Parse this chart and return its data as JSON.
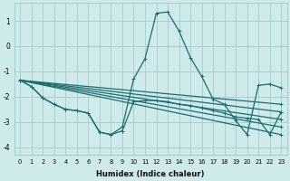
{
  "background_color": "#ceeaea",
  "grid_color": "#aacfcf",
  "line_color": "#1a6e6e",
  "xlabel": "Humidex (Indice chaleur)",
  "xlim": [
    -0.5,
    23.5
  ],
  "ylim": [
    -4.3,
    1.7
  ],
  "yticks": [
    -4,
    -3,
    -2,
    -1,
    0,
    1
  ],
  "xticks": [
    0,
    1,
    2,
    3,
    4,
    5,
    6,
    7,
    8,
    9,
    10,
    11,
    12,
    13,
    14,
    15,
    16,
    17,
    18,
    19,
    20,
    21,
    22,
    23
  ],
  "straight_lines": [
    {
      "x0": 0,
      "y0": -1.35,
      "x1": 23,
      "y1": -3.5
    },
    {
      "x0": 0,
      "y0": -1.35,
      "x1": 23,
      "y1": -3.2
    },
    {
      "x0": 0,
      "y0": -1.35,
      "x1": 23,
      "y1": -2.9
    },
    {
      "x0": 0,
      "y0": -1.35,
      "x1": 23,
      "y1": -2.6
    },
    {
      "x0": 0,
      "y0": -1.35,
      "x1": 23,
      "y1": -2.3
    }
  ],
  "curve1": {
    "x": [
      0,
      1,
      2,
      3,
      4,
      5,
      6,
      7,
      8,
      9,
      10,
      11,
      12,
      13,
      14,
      15,
      16,
      17,
      18,
      19,
      20,
      21,
      22,
      23
    ],
    "y": [
      -1.35,
      -1.6,
      -2.05,
      -2.3,
      -2.5,
      -2.55,
      -2.65,
      -3.4,
      -3.5,
      -3.35,
      -2.2,
      -2.15,
      -2.15,
      -2.2,
      -2.3,
      -2.35,
      -2.45,
      -2.55,
      -2.65,
      -2.8,
      -2.85,
      -2.9,
      -3.5,
      -2.6
    ]
  },
  "main_curve": {
    "x": [
      0,
      1,
      2,
      3,
      4,
      5,
      6,
      7,
      8,
      9,
      10,
      11,
      12,
      13,
      14,
      15,
      16,
      17,
      18,
      19,
      20,
      21,
      22,
      23
    ],
    "y": [
      -1.35,
      -1.6,
      -2.05,
      -2.3,
      -2.5,
      -2.55,
      -2.65,
      -3.4,
      -3.5,
      -3.2,
      -1.3,
      -0.5,
      1.3,
      1.35,
      0.6,
      -0.45,
      -1.2,
      -2.1,
      -2.3,
      -2.95,
      -3.5,
      -1.55,
      -1.5,
      -1.65
    ]
  }
}
